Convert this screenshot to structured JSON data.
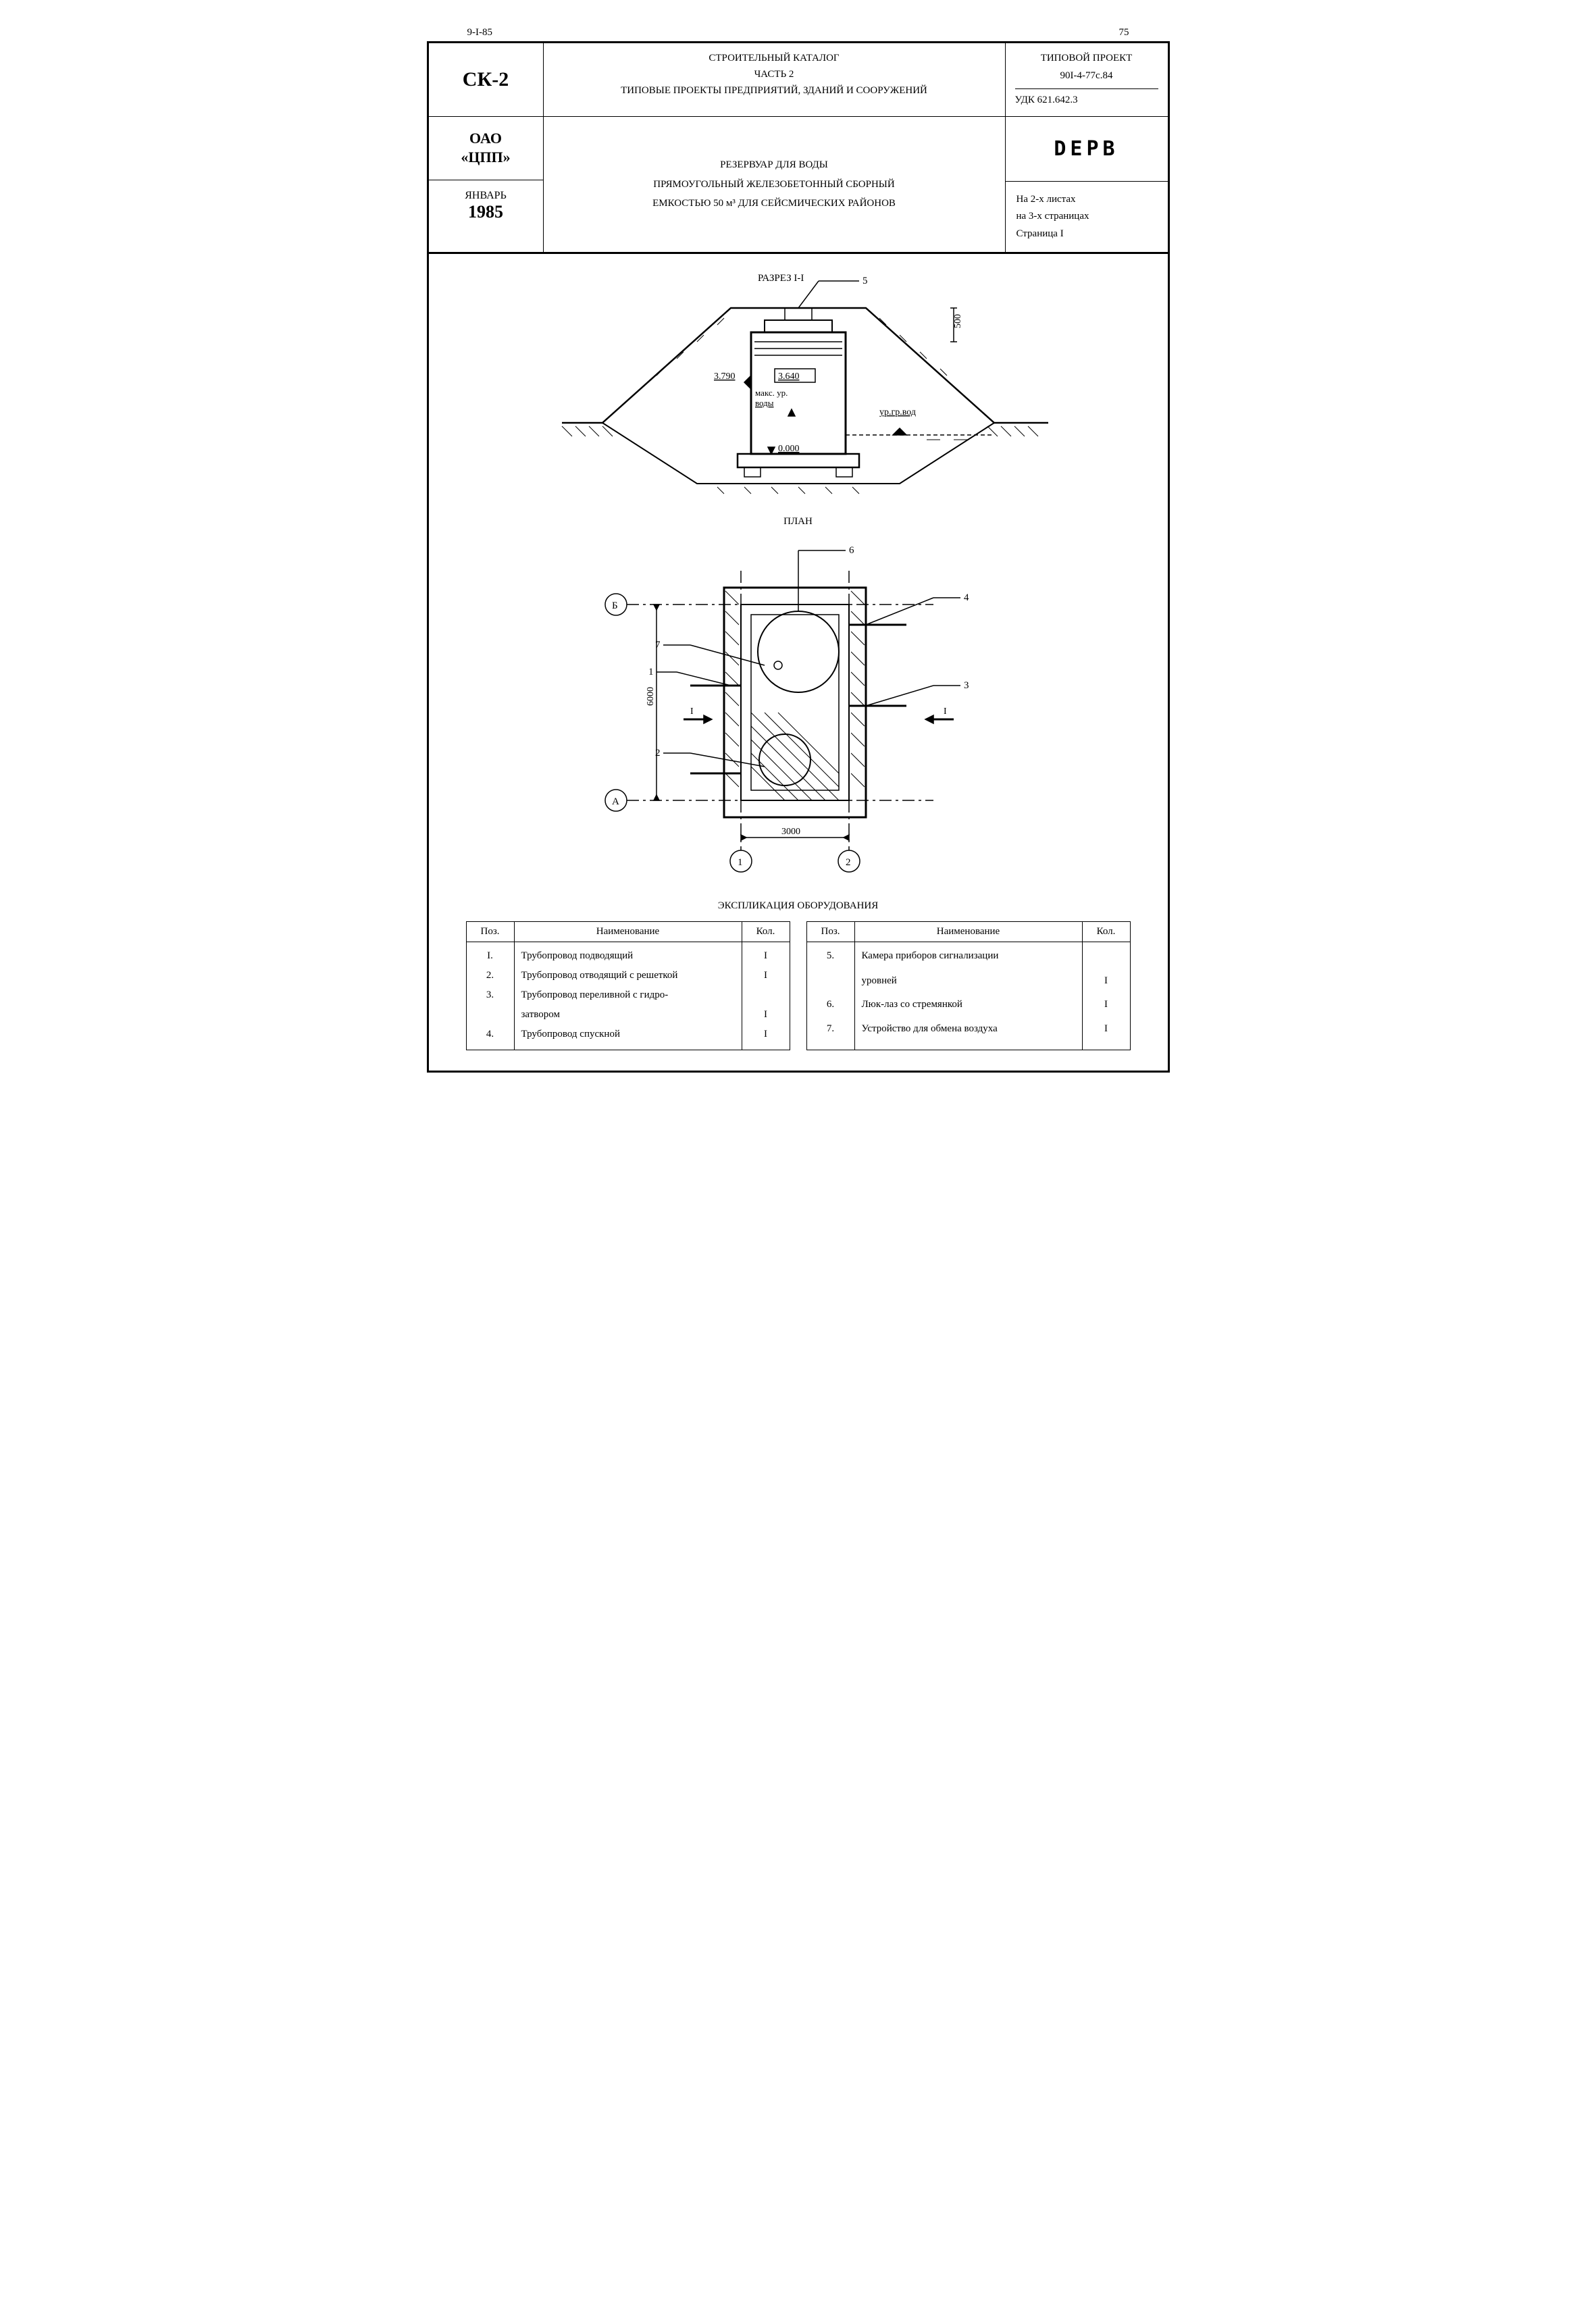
{
  "top": {
    "left": "9-I-85",
    "page_no": "75"
  },
  "header": {
    "ck": "СК-2",
    "catalog_line1": "СТРОИТЕЛЬНЫЙ КАТАЛОГ",
    "catalog_line2": "ЧАСТЬ 2",
    "catalog_line3": "ТИПОВЫЕ ПРОЕКТЫ ПРЕДПРИЯТИЙ, ЗДАНИЙ И СООРУЖЕНИЙ",
    "project_label": "ТИПОВОЙ ПРОЕКТ",
    "project_no": "90I-4-77с.84",
    "udk": "УДК 621.642.3"
  },
  "row2": {
    "org1": "ОАО",
    "org2": "«ЦПП»",
    "month": "ЯНВАРЬ",
    "year": "1985",
    "title_l1": "РЕЗЕРВУАР ДЛЯ ВОДЫ",
    "title_l2": "ПРЯМОУГОЛЬНЫЙ ЖЕЛЕЗОБЕТОННЫЙ СБОРНЫЙ",
    "title_l3": "ЕМКОСТЬЮ   50 м³  ДЛЯ СЕЙСМИЧЕСКИХ РАЙОНОВ",
    "derb": "DEPB",
    "pages_l1": "На 2-х листах",
    "pages_l2": "на 3-х страницах",
    "pages_l3": "Страница I"
  },
  "section": {
    "title": "РАЗРЕЗ I-I",
    "callout5": "5",
    "dim500": "500",
    "lvl_3790": "3.790",
    "lvl_3640": "3.640",
    "gw_label": "ур.гр.вод",
    "max_l1": "макс. ур.",
    "max_l2": "воды",
    "lvl_0": "0.000",
    "stroke": "#000000",
    "fill": "#ffffff"
  },
  "plan": {
    "title": "ПЛАН",
    "axisA": "А",
    "axisB": "Б",
    "axis1": "1",
    "axis2": "2",
    "dimW": "3000",
    "dimH": "6000",
    "callouts": {
      "c1": "1",
      "c2": "2",
      "c3": "3",
      "c4": "4",
      "c6": "6",
      "c7": "7"
    },
    "sectI": "I"
  },
  "expl": {
    "title": "ЭКСПЛИКАЦИЯ   ОБОРУДОВАНИЯ",
    "columns": {
      "pos": "Поз.",
      "name": "Наименование",
      "qty": "Кол."
    },
    "left": [
      {
        "pos": "I.",
        "name": "Трубопровод подводящий",
        "qty": "I"
      },
      {
        "pos": "2.",
        "name": "Трубопровод отводящий с решеткой",
        "qty": "I"
      },
      {
        "pos": "3.",
        "name": "Трубопровод переливной с гидро-",
        "qty": ""
      },
      {
        "pos": "",
        "name": "затвором",
        "qty": "I"
      },
      {
        "pos": "4.",
        "name": "Трубопровод спускной",
        "qty": "I"
      }
    ],
    "right": [
      {
        "pos": "5.",
        "name": "Камера приборов сигнализации",
        "qty": ""
      },
      {
        "pos": "",
        "name": "уровней",
        "qty": "I"
      },
      {
        "pos": "6.",
        "name": "Люк-лаз со стремянкой",
        "qty": "I"
      },
      {
        "pos": "7.",
        "name": "Устройство для обмена воздуха",
        "qty": "I"
      }
    ]
  },
  "style": {
    "line_color": "#000000",
    "bg_color": "#ffffff",
    "hatch_width": 1,
    "main_line_width": 2
  }
}
